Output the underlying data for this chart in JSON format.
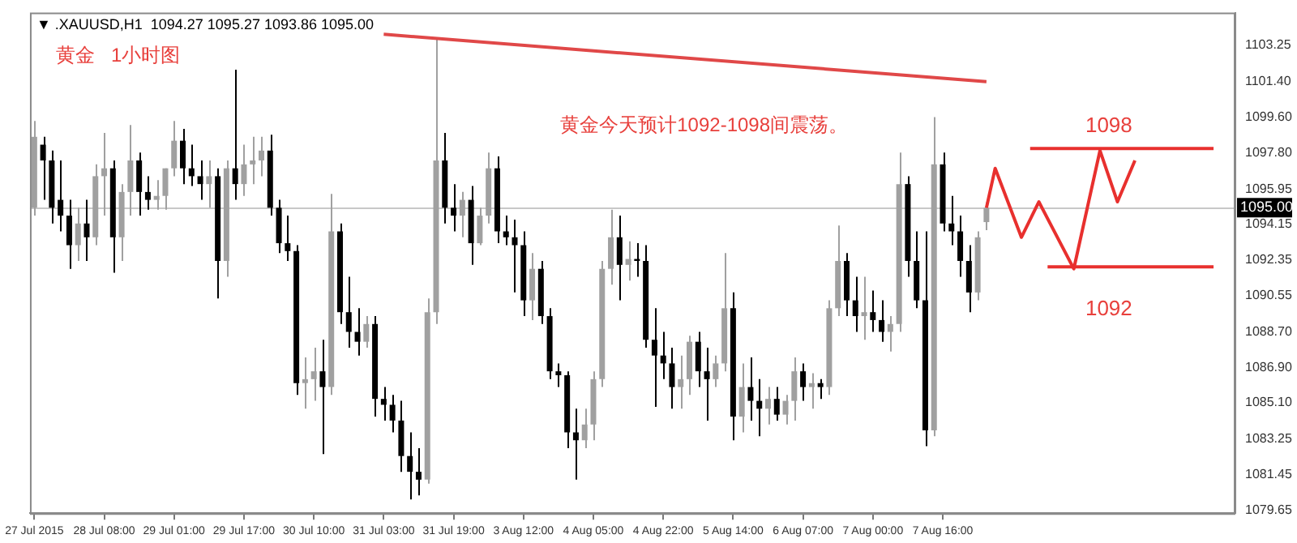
{
  "chart_data": {
    "type": "candlestick",
    "title": "▼ .XAUUSD,H1  1094.27 1095.27 1093.86 1095.00",
    "subtitle": "黄金   1小时图",
    "annotations": [
      "黄金今天预计1092-1098间震荡。",
      "1098",
      "1092"
    ],
    "categories": [
      "27 Jul 2015",
      null,
      null,
      null,
      null,
      null,
      null,
      null,
      "28 Jul 08:00",
      null,
      null,
      null,
      null,
      null,
      null,
      null,
      "29 Jul 01:00",
      null,
      null,
      null,
      null,
      null,
      null,
      null,
      "29 Jul 17:00",
      null,
      null,
      null,
      null,
      null,
      null,
      null,
      "30 Jul 10:00",
      null,
      null,
      null,
      null,
      null,
      null,
      null,
      "31 Jul 03:00",
      null,
      null,
      null,
      null,
      null,
      null,
      null,
      "31 Jul 19:00",
      null,
      null,
      null,
      null,
      null,
      null,
      null,
      "3 Aug 12:00",
      null,
      null,
      null,
      null,
      null,
      null,
      null,
      "4 Aug 05:00",
      null,
      null,
      null,
      null,
      null,
      null,
      null,
      "4 Aug 22:00",
      null,
      null,
      null,
      null,
      null,
      null,
      null,
      "5 Aug 14:00",
      null,
      null,
      null,
      null,
      null,
      null,
      null,
      "6 Aug 07:00",
      null,
      null,
      null,
      null,
      null,
      null,
      null,
      "7 Aug 00:00",
      null,
      null,
      null,
      null,
      null,
      null,
      null,
      "7 Aug 16:00",
      null,
      null,
      null,
      null,
      null,
      null,
      null,
      null,
      null,
      null,
      null,
      null,
      null,
      null,
      null,
      null,
      null,
      null,
      null,
      null,
      null,
      null,
      null,
      null,
      null,
      null,
      null,
      null,
      null,
      null,
      null,
      null,
      null
    ],
    "ohlc": [
      [
        1095.0,
        1099.4,
        1094.6,
        1098.6
      ],
      [
        1098.2,
        1098.6,
        1095.4,
        1097.4
      ],
      [
        1097.4,
        1097.9,
        1094.2,
        1095.0
      ],
      [
        1095.4,
        1097.4,
        1093.8,
        1094.6
      ],
      [
        1094.6,
        1095.4,
        1091.9,
        1093.1
      ],
      [
        1093.1,
        1095.0,
        1092.3,
        1094.2
      ],
      [
        1094.2,
        1095.4,
        1092.3,
        1093.5
      ],
      [
        1093.5,
        1097.2,
        1093.1,
        1096.6
      ],
      [
        1096.6,
        1098.8,
        1094.6,
        1097.0
      ],
      [
        1097.0,
        1097.4,
        1091.7,
        1093.5
      ],
      [
        1093.5,
        1096.2,
        1092.3,
        1095.8
      ],
      [
        1095.8,
        1099.2,
        1094.6,
        1097.4
      ],
      [
        1097.4,
        1097.8,
        1094.6,
        1095.8
      ],
      [
        1095.8,
        1096.6,
        1094.9,
        1095.4
      ],
      [
        1095.4,
        1096.4,
        1094.9,
        1095.6
      ],
      [
        1095.6,
        1097.0,
        1094.9,
        1097.0
      ],
      [
        1097.0,
        1099.4,
        1096.6,
        1098.4
      ],
      [
        1098.4,
        1099.0,
        1096.2,
        1097.0
      ],
      [
        1097.0,
        1098.2,
        1096.1,
        1096.6
      ],
      [
        1096.6,
        1097.4,
        1095.4,
        1096.2
      ],
      [
        1096.2,
        1097.4,
        1095.0,
        1096.6
      ],
      [
        1096.6,
        1097.0,
        1090.4,
        1092.3
      ],
      [
        1092.3,
        1097.4,
        1091.5,
        1097.0
      ],
      [
        1097.0,
        1102.0,
        1095.4,
        1096.2
      ],
      [
        1096.2,
        1098.2,
        1095.6,
        1097.2
      ],
      [
        1097.2,
        1098.6,
        1096.2,
        1097.4
      ],
      [
        1097.4,
        1098.6,
        1096.6,
        1097.9
      ],
      [
        1097.9,
        1098.7,
        1094.6,
        1095.0
      ],
      [
        1095.0,
        1095.4,
        1092.7,
        1093.2
      ],
      [
        1093.2,
        1094.6,
        1092.3,
        1092.8
      ],
      [
        1092.8,
        1093.1,
        1085.5,
        1086.1
      ],
      [
        1086.1,
        1087.4,
        1084.8,
        1086.3
      ],
      [
        1086.3,
        1087.9,
        1085.2,
        1086.7
      ],
      [
        1086.7,
        1088.3,
        1082.5,
        1085.9
      ],
      [
        1085.9,
        1095.7,
        1085.5,
        1093.8
      ],
      [
        1093.8,
        1094.2,
        1089.1,
        1089.7
      ],
      [
        1089.7,
        1091.5,
        1087.9,
        1088.7
      ],
      [
        1088.7,
        1089.9,
        1087.5,
        1088.2
      ],
      [
        1088.2,
        1089.5,
        1087.9,
        1089.1
      ],
      [
        1089.1,
        1089.5,
        1084.4,
        1085.3
      ],
      [
        1085.3,
        1085.9,
        1084.2,
        1085.0
      ],
      [
        1085.0,
        1085.5,
        1083.6,
        1084.2
      ],
      [
        1084.2,
        1085.2,
        1081.6,
        1082.4
      ],
      [
        1082.4,
        1083.6,
        1080.2,
        1081.6
      ],
      [
        1081.6,
        1082.8,
        1080.4,
        1081.2
      ],
      [
        1081.2,
        1090.4,
        1081.0,
        1089.7
      ],
      [
        1089.7,
        1103.6,
        1089.1,
        1097.4
      ],
      [
        1097.4,
        1098.8,
        1094.2,
        1095.0
      ],
      [
        1095.0,
        1096.2,
        1093.8,
        1094.6
      ],
      [
        1094.6,
        1095.8,
        1093.5,
        1095.4
      ],
      [
        1095.4,
        1096.1,
        1092.1,
        1093.2
      ],
      [
        1093.2,
        1095.0,
        1093.1,
        1094.6
      ],
      [
        1094.6,
        1097.8,
        1094.2,
        1097.0
      ],
      [
        1097.0,
        1097.6,
        1093.2,
        1093.8
      ],
      [
        1093.8,
        1094.6,
        1093.1,
        1093.5
      ],
      [
        1093.5,
        1094.4,
        1090.7,
        1093.1
      ],
      [
        1093.1,
        1093.8,
        1089.5,
        1090.3
      ],
      [
        1090.3,
        1092.7,
        1089.3,
        1091.9
      ],
      [
        1091.9,
        1092.3,
        1089.1,
        1089.5
      ],
      [
        1089.5,
        1089.9,
        1086.3,
        1086.7
      ],
      [
        1086.7,
        1087.1,
        1085.9,
        1086.5
      ],
      [
        1086.5,
        1086.7,
        1082.8,
        1083.6
      ],
      [
        1083.6,
        1084.8,
        1081.2,
        1083.2
      ],
      [
        1083.2,
        1084.8,
        1082.8,
        1084.0
      ],
      [
        1084.0,
        1086.7,
        1083.2,
        1086.3
      ],
      [
        1086.3,
        1092.3,
        1085.9,
        1091.9
      ],
      [
        1091.9,
        1094.9,
        1091.1,
        1093.5
      ],
      [
        1093.5,
        1094.6,
        1090.3,
        1092.1
      ],
      [
        1092.1,
        1093.3,
        1091.3,
        1092.4
      ],
      [
        1092.4,
        1093.2,
        1091.5,
        1092.3
      ],
      [
        1092.3,
        1093.1,
        1087.9,
        1088.3
      ],
      [
        1088.3,
        1089.9,
        1084.9,
        1087.5
      ],
      [
        1087.5,
        1088.7,
        1086.3,
        1087.1
      ],
      [
        1087.1,
        1087.9,
        1084.8,
        1085.9
      ],
      [
        1085.9,
        1087.5,
        1084.8,
        1086.3
      ],
      [
        1086.3,
        1088.5,
        1085.5,
        1088.2
      ],
      [
        1088.2,
        1088.7,
        1085.9,
        1086.7
      ],
      [
        1086.7,
        1087.9,
        1084.2,
        1086.3
      ],
      [
        1086.3,
        1087.5,
        1085.9,
        1087.1
      ],
      [
        1087.1,
        1092.7,
        1086.7,
        1089.9
      ],
      [
        1089.9,
        1090.7,
        1083.2,
        1084.4
      ],
      [
        1084.4,
        1087.1,
        1083.6,
        1085.9
      ],
      [
        1085.9,
        1087.4,
        1084.2,
        1085.2
      ],
      [
        1085.2,
        1086.3,
        1083.4,
        1084.8
      ],
      [
        1084.8,
        1085.9,
        1084.0,
        1085.3
      ],
      [
        1085.3,
        1085.9,
        1084.2,
        1084.5
      ],
      [
        1084.5,
        1085.5,
        1084.0,
        1085.2
      ],
      [
        1085.2,
        1087.4,
        1084.2,
        1086.7
      ],
      [
        1086.7,
        1087.1,
        1085.2,
        1085.9
      ],
      [
        1085.9,
        1086.6,
        1084.8,
        1086.1
      ],
      [
        1086.1,
        1086.3,
        1085.3,
        1085.9
      ],
      [
        1085.9,
        1090.3,
        1085.5,
        1089.9
      ],
      [
        1089.9,
        1094.1,
        1089.5,
        1092.3
      ],
      [
        1092.3,
        1092.7,
        1089.5,
        1090.3
      ],
      [
        1090.3,
        1091.5,
        1088.7,
        1089.5
      ],
      [
        1089.5,
        1091.5,
        1088.3,
        1089.7
      ],
      [
        1089.7,
        1090.8,
        1088.7,
        1089.3
      ],
      [
        1089.3,
        1090.3,
        1088.2,
        1088.7
      ],
      [
        1088.7,
        1089.5,
        1087.7,
        1089.1
      ],
      [
        1089.1,
        1097.8,
        1088.7,
        1096.2
      ],
      [
        1096.2,
        1096.6,
        1091.5,
        1092.3
      ],
      [
        1092.3,
        1093.8,
        1089.9,
        1090.3
      ],
      [
        1090.3,
        1093.8,
        1082.9,
        1083.7
      ],
      [
        1083.7,
        1099.6,
        1083.4,
        1097.2
      ],
      [
        1097.2,
        1097.8,
        1093.8,
        1094.2
      ],
      [
        1094.2,
        1095.6,
        1093.1,
        1093.8
      ],
      [
        1093.8,
        1094.6,
        1091.5,
        1092.3
      ],
      [
        1092.3,
        1093.1,
        1089.7,
        1090.7
      ],
      [
        1090.7,
        1093.8,
        1090.3,
        1093.5
      ],
      [
        1094.27,
        1095.27,
        1093.86,
        1095.0
      ],
      null,
      null,
      null,
      null,
      null,
      null,
      null,
      null,
      null,
      null,
      null,
      null,
      null,
      null,
      null,
      null,
      null,
      null,
      null,
      null,
      null,
      null,
      null,
      null,
      null,
      null,
      null,
      null
    ],
    "colors": [
      "#a0a0a0",
      "#000000",
      "#000000",
      "#000000",
      "#000000",
      "#a0a0a0",
      "#000000",
      "#a0a0a0",
      "#a0a0a0",
      "#000000",
      "#a0a0a0",
      "#a0a0a0",
      "#000000",
      "#000000",
      "#a0a0a0",
      "#a0a0a0",
      "#a0a0a0",
      "#000000",
      "#000000",
      "#000000",
      "#a0a0a0",
      "#000000",
      "#a0a0a0",
      "#000000",
      "#a0a0a0",
      "#a0a0a0",
      "#a0a0a0",
      "#000000",
      "#000000",
      "#000000",
      "#000000",
      "#a0a0a0",
      "#a0a0a0",
      "#000000",
      "#a0a0a0",
      "#000000",
      "#000000",
      "#000000",
      "#a0a0a0",
      "#000000",
      "#000000",
      "#000000",
      "#000000",
      "#000000",
      "#000000",
      "#a0a0a0",
      "#a0a0a0",
      "#000000",
      "#000000",
      "#a0a0a0",
      "#000000",
      "#a0a0a0",
      "#a0a0a0",
      "#000000",
      "#000000",
      "#000000",
      "#000000",
      "#a0a0a0",
      "#000000",
      "#000000",
      "#000000",
      "#000000",
      "#000000",
      "#a0a0a0",
      "#a0a0a0",
      "#a0a0a0",
      "#a0a0a0",
      "#000000",
      "#a0a0a0",
      "#000000",
      "#000000",
      "#000000",
      "#000000",
      "#000000",
      "#a0a0a0",
      "#a0a0a0",
      "#000000",
      "#000000",
      "#a0a0a0",
      "#a0a0a0",
      "#000000",
      "#a0a0a0",
      "#000000",
      "#000000",
      "#a0a0a0",
      "#000000",
      "#a0a0a0",
      "#a0a0a0",
      "#000000",
      "#a0a0a0",
      "#000000",
      "#a0a0a0",
      "#a0a0a0",
      "#000000",
      "#000000",
      "#a0a0a0",
      "#000000",
      "#000000",
      "#a0a0a0",
      "#a0a0a0",
      "#000000",
      "#000000",
      "#000000",
      "#a0a0a0",
      "#000000",
      "#000000",
      "#000000",
      "#000000",
      "#a0a0a0",
      "#a0a0a0",
      null,
      null,
      null,
      null,
      null,
      null,
      null,
      null,
      null,
      null,
      null,
      null,
      null,
      null,
      null,
      null,
      null,
      null,
      null,
      null,
      null,
      null,
      null,
      null,
      null,
      null,
      null,
      null
    ],
    "series": [
      {
        "type": "line",
        "color": "#e04848",
        "values": [
          null,
          null,
          null,
          null,
          null,
          null,
          null,
          null,
          null,
          null,
          null,
          null,
          null,
          null,
          null,
          null,
          null,
          null,
          null,
          null,
          null,
          null,
          null,
          null,
          null,
          null,
          null,
          null,
          null,
          null,
          null,
          null,
          null,
          null,
          null,
          null,
          null,
          null,
          null,
          null,
          1103.8,
          null,
          null,
          null,
          null,
          null,
          null,
          null,
          null,
          null,
          null,
          null,
          null,
          null,
          null,
          null,
          null,
          null,
          null,
          null,
          null,
          null,
          null,
          null,
          null,
          null,
          null,
          null,
          null,
          null,
          null,
          null,
          null,
          null,
          null,
          null,
          null,
          null,
          null,
          null,
          null,
          null,
          null,
          null,
          null,
          null,
          null,
          null,
          null,
          null,
          null,
          null,
          null,
          null,
          null,
          null,
          null,
          null,
          null,
          null,
          null,
          null,
          null,
          null,
          null,
          null,
          null,
          null,
          null,
          1101.4,
          null,
          null,
          null,
          null,
          null,
          null,
          null,
          null,
          null,
          null,
          null,
          null,
          null,
          null,
          null,
          null,
          null,
          null,
          null,
          null,
          null,
          null,
          null,
          null,
          null,
          null,
          null,
          null
        ]
      },
      {
        "type": "line",
        "color": "#e8302e",
        "values": [
          null,
          null,
          null,
          null,
          null,
          null,
          null,
          null,
          null,
          null,
          null,
          null,
          null,
          null,
          null,
          null,
          null,
          null,
          null,
          null,
          null,
          null,
          null,
          null,
          null,
          null,
          null,
          null,
          null,
          null,
          null,
          null,
          null,
          null,
          null,
          null,
          null,
          null,
          null,
          null,
          null,
          null,
          null,
          null,
          null,
          null,
          null,
          null,
          null,
          null,
          null,
          null,
          null,
          null,
          null,
          null,
          null,
          null,
          null,
          null,
          null,
          null,
          null,
          null,
          null,
          null,
          null,
          null,
          null,
          null,
          null,
          null,
          null,
          null,
          null,
          null,
          null,
          null,
          null,
          null,
          null,
          null,
          null,
          null,
          null,
          null,
          null,
          null,
          null,
          null,
          null,
          null,
          null,
          null,
          null,
          null,
          null,
          null,
          null,
          null,
          null,
          null,
          null,
          null,
          null,
          null,
          null,
          null,
          null,
          1095.0,
          1097.0,
          null,
          null,
          1093.5,
          null,
          1095.3,
          null,
          null,
          null,
          1091.9,
          null,
          null,
          1097.9,
          null,
          1095.3,
          null,
          1097.4,
          null,
          null,
          null,
          null,
          null,
          null,
          null,
          null,
          null,
          null,
          null
        ]
      },
      {
        "type": "line",
        "color": "#e8302e",
        "values": [
          null,
          null,
          null,
          null,
          null,
          null,
          null,
          null,
          null,
          null,
          null,
          null,
          null,
          null,
          null,
          null,
          null,
          null,
          null,
          null,
          null,
          null,
          null,
          null,
          null,
          null,
          null,
          null,
          null,
          null,
          null,
          null,
          null,
          null,
          null,
          null,
          null,
          null,
          null,
          null,
          null,
          null,
          null,
          null,
          null,
          null,
          null,
          null,
          null,
          null,
          null,
          null,
          null,
          null,
          null,
          null,
          null,
          null,
          null,
          null,
          null,
          null,
          null,
          null,
          null,
          null,
          null,
          null,
          null,
          null,
          null,
          null,
          null,
          null,
          null,
          null,
          null,
          null,
          null,
          null,
          null,
          null,
          null,
          null,
          null,
          null,
          null,
          null,
          null,
          null,
          null,
          null,
          null,
          null,
          null,
          null,
          null,
          null,
          null,
          null,
          null,
          null,
          null,
          null,
          null,
          null,
          null,
          null,
          null,
          null,
          null,
          null,
          null,
          null,
          1098,
          null,
          null,
          null,
          null,
          null,
          null,
          null,
          null,
          null,
          null,
          null,
          null,
          null,
          null,
          null,
          null,
          null,
          null,
          null,
          null,
          1098,
          null,
          null
        ]
      },
      {
        "type": "line",
        "color": "#e8302e",
        "values": [
          null,
          null,
          null,
          null,
          null,
          null,
          null,
          null,
          null,
          null,
          null,
          null,
          null,
          null,
          null,
          null,
          null,
          null,
          null,
          null,
          null,
          null,
          null,
          null,
          null,
          null,
          null,
          null,
          null,
          null,
          null,
          null,
          null,
          null,
          null,
          null,
          null,
          null,
          null,
          null,
          null,
          null,
          null,
          null,
          null,
          null,
          null,
          null,
          null,
          null,
          null,
          null,
          null,
          null,
          null,
          null,
          null,
          null,
          null,
          null,
          null,
          null,
          null,
          null,
          null,
          null,
          null,
          null,
          null,
          null,
          null,
          null,
          null,
          null,
          null,
          null,
          null,
          null,
          null,
          null,
          null,
          null,
          null,
          null,
          null,
          null,
          null,
          null,
          null,
          null,
          null,
          null,
          null,
          null,
          null,
          null,
          null,
          null,
          null,
          null,
          null,
          null,
          null,
          null,
          null,
          null,
          null,
          null,
          null,
          null,
          null,
          null,
          null,
          null,
          null,
          null,
          1092,
          null,
          null,
          null,
          null,
          null,
          null,
          null,
          null,
          null,
          null,
          null,
          null,
          null,
          null,
          null,
          null,
          null,
          null,
          1092,
          null,
          null
        ]
      }
    ],
    "ref_lines": [
      {
        "axis": "y",
        "value": 1095.0,
        "label": "1095.00",
        "color": "#c8c8c8"
      }
    ],
    "ylim": [
      1079.5,
      1104.9
    ],
    "yticks": [
      1103.25,
      {
        "value": 1101.4,
        "label": "1101.40"
      },
      {
        "value": 1099.6,
        "label": "1099.60"
      },
      {
        "value": 1097.8,
        "label": "1097.80"
      },
      1095.95,
      1094.15,
      1092.35,
      1090.55,
      {
        "value": 1088.7,
        "label": "1088.70"
      },
      {
        "value": 1086.9,
        "label": "1086.90"
      },
      {
        "value": 1085.1,
        "label": "1085.10"
      },
      1083.25,
      1081.45,
      1079.65
    ],
    "grid": false,
    "legend": false
  }
}
